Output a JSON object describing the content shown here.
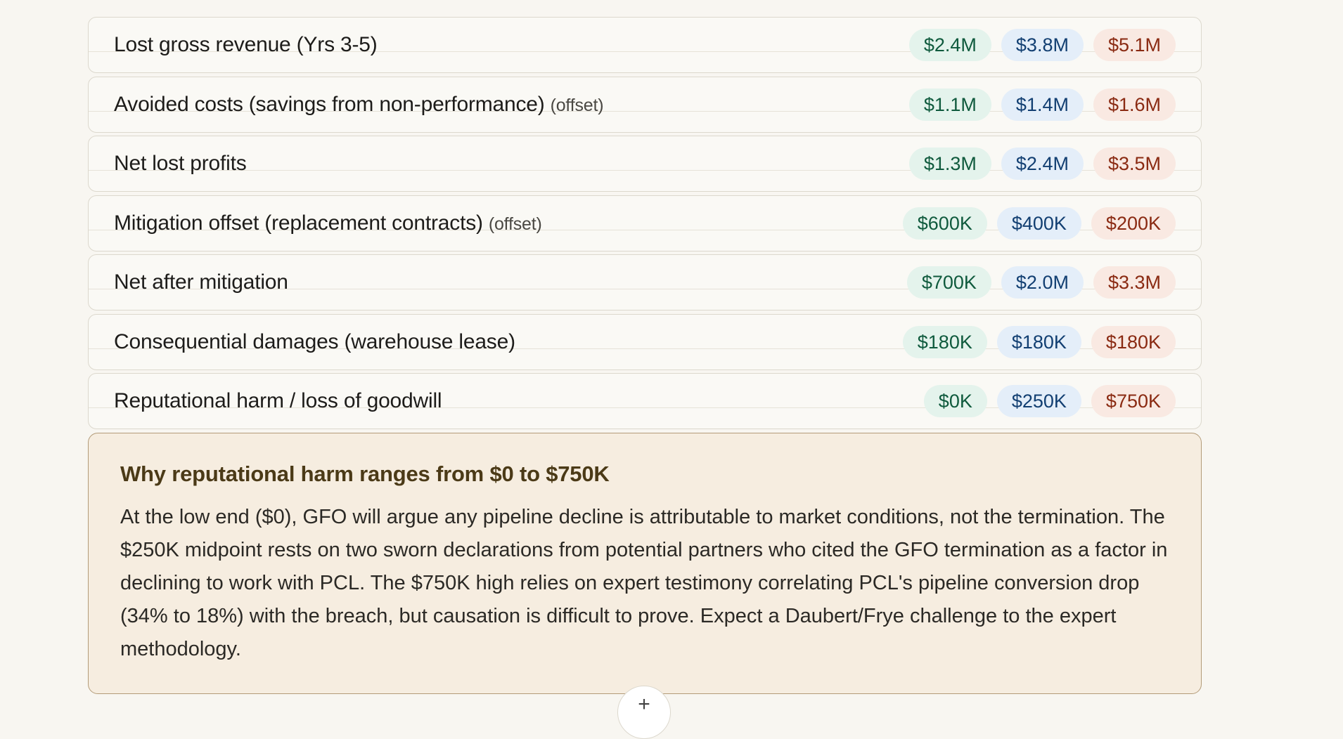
{
  "rows": [
    {
      "label": "Lost gross revenue (Yrs 3-5)",
      "tag": "",
      "low": "$2.4M",
      "mid": "$3.8M",
      "high": "$5.1M"
    },
    {
      "label": "Avoided costs (savings from non-performance)",
      "tag": "(offset)",
      "low": "$1.1M",
      "mid": "$1.4M",
      "high": "$1.6M"
    },
    {
      "label": "Net lost profits",
      "tag": "",
      "low": "$1.3M",
      "mid": "$2.4M",
      "high": "$3.5M"
    },
    {
      "label": "Mitigation offset (replacement contracts)",
      "tag": "(offset)",
      "low": "$600K",
      "mid": "$400K",
      "high": "$200K"
    },
    {
      "label": "Net after mitigation",
      "tag": "",
      "low": "$700K",
      "mid": "$2.0M",
      "high": "$3.3M"
    },
    {
      "label": "Consequential damages (warehouse lease)",
      "tag": "",
      "low": "$180K",
      "mid": "$180K",
      "high": "$180K"
    },
    {
      "label": "Reputational harm / loss of goodwill",
      "tag": "",
      "low": "$0K",
      "mid": "$250K",
      "high": "$750K"
    }
  ],
  "note": {
    "title": "Why reputational harm ranges from $0 to $750K",
    "body": "At the low end ($0), GFO will argue any pipeline decline is attributable to market conditions, not the termination. The $250K midpoint rests on two sworn declarations from potential partners who cited the GFO termination as a factor in declining to work with PCL. The $750K high relies on expert testimony correlating PCL's pipeline conversion drop (34% to 18%) with the breach, but causation is difficult to prove. Expect a Daubert/Frye challenge to the expert methodology."
  },
  "fab": {
    "symbol": "+"
  },
  "colors": {
    "low_bg": "#e4f3ec",
    "low_text": "#0f5a3d",
    "mid_bg": "#e4eef9",
    "mid_text": "#123f72",
    "high_bg": "#f9e9e2",
    "high_text": "#8a2a12",
    "note_bg": "#f6ede0",
    "note_border": "#b39b78"
  }
}
